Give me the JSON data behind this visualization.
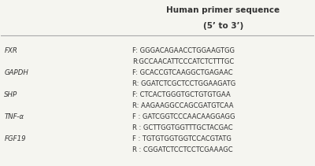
{
  "title_line1": "Human primer sequence",
  "title_line2": "(5’ to 3’)",
  "background_color": "#f5f5f0",
  "line_color": "#aaaaaa",
  "text_color": "#333333",
  "rows": [
    {
      "gene": "FXR",
      "seq_f": "F: GGGACAGAACCTGGAAGTGG",
      "seq_r": "R:GCCAACATTCCCATCTCTTTGC"
    },
    {
      "gene": "GAPDH",
      "seq_f": "F: GCACCGTCAAGGCTGAGAAC",
      "seq_r": "R: GGATCTCGCTCCTGGAAGATG"
    },
    {
      "gene": "SHP",
      "seq_f": "F: CTCACTGGGTGCTGTGTGAA",
      "seq_r": "R: AAGAAGGCCAGCGATGTCAA"
    },
    {
      "gene": "TNF-α",
      "seq_f": "F : GATCGGTCCCAACAAGGAGG",
      "seq_r": "R : GCTTGGTGGTTTGCTACGAC"
    },
    {
      "gene": "FGF19",
      "seq_f": "F : TGTGTGGTGGTCCACGTATG",
      "seq_r": "R : CGGATCTCCTCCTCGAAAGC"
    }
  ]
}
